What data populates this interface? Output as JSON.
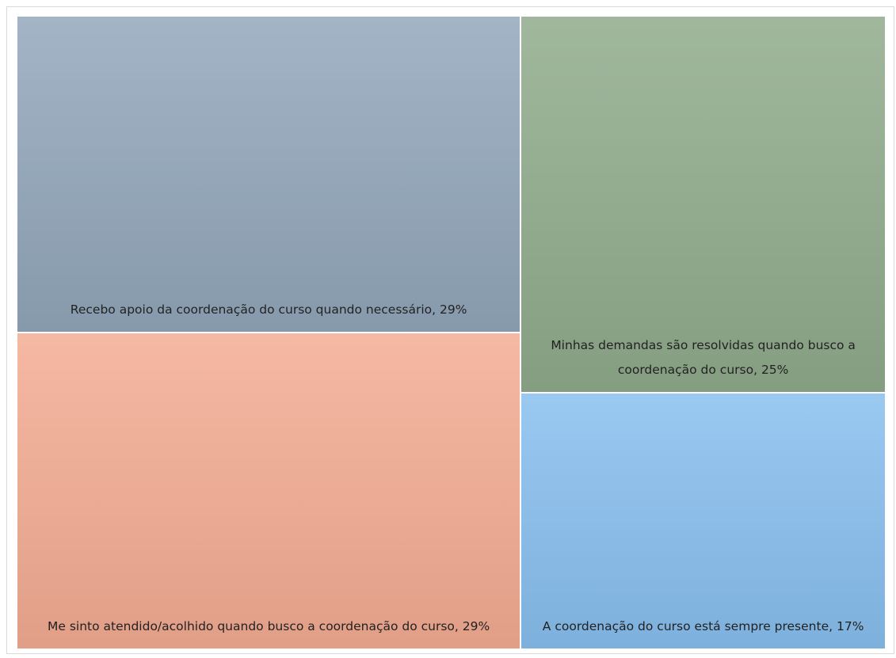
{
  "chart_data": {
    "type": "treemap",
    "labels": [
      "Recebo apoio da coordenação do curso quando necessário, 29%",
      "Me sinto atendido/acolhido quando busco a coordenação do curso, 29%",
      "Minhas demandas são resolvidas quando busco a coordenação do curso, 25%",
      "A coordenação do curso está sempre presente, 17%"
    ],
    "values": [
      29,
      29,
      25,
      17
    ],
    "colors": [
      "#92a7bb",
      "#f4ac93",
      "#90ab8c",
      "#88bfef"
    ]
  }
}
